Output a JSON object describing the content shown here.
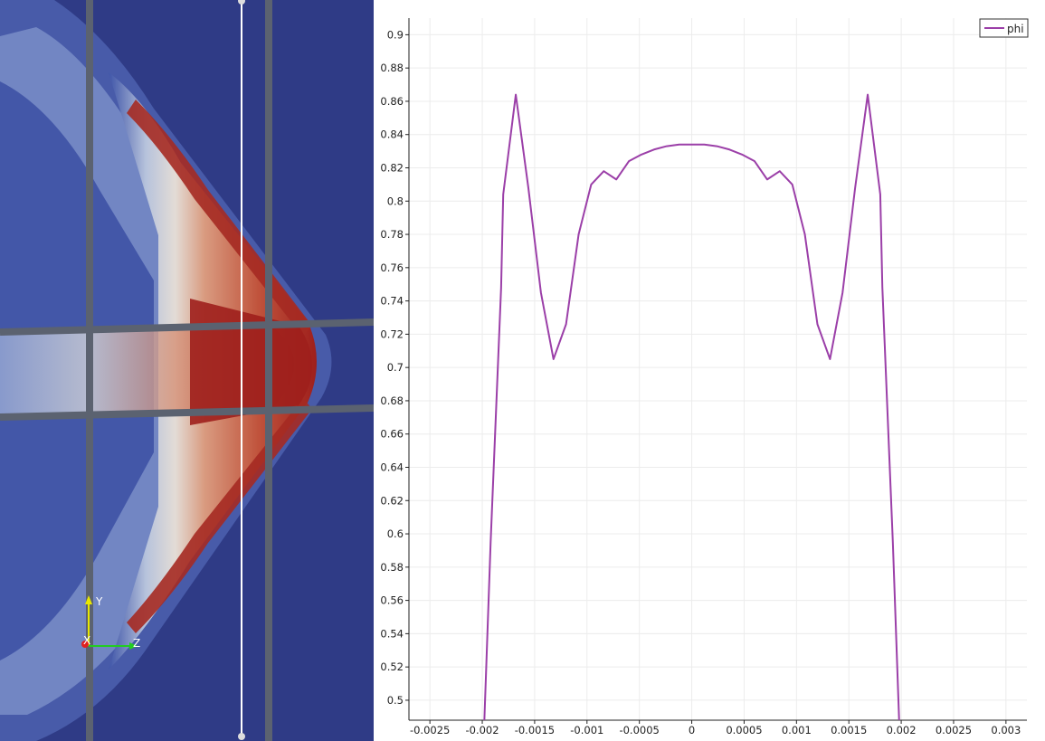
{
  "render_view": {
    "orientation_axes": {
      "x_label": "X",
      "y_label": "Y",
      "z_label": "Z"
    },
    "colors": {
      "background": "#2f3b86",
      "high": "#9e1f1c",
      "mid": "#dcdcdc",
      "grid_lines": "#5b6270",
      "probe_line": "#ffffff"
    }
  },
  "chart_data": {
    "type": "line",
    "title": "",
    "xlabel": "",
    "ylabel": "",
    "xlim": [
      -0.0027,
      0.0032
    ],
    "ylim": [
      0.488,
      0.91
    ],
    "x_ticks": [
      -0.0025,
      -0.002,
      -0.0015,
      -0.001,
      -0.0005,
      0,
      0.0005,
      0.001,
      0.0015,
      0.002,
      0.0025,
      0.003
    ],
    "x_tick_labels": [
      "-0.0025",
      "-0.002",
      "-0.0015",
      "-0.001",
      "-0.0005",
      "0",
      "0.0005",
      "0.001",
      "0.0015",
      "0.002",
      "0.0025",
      "0.003"
    ],
    "y_ticks": [
      0.5,
      0.52,
      0.54,
      0.56,
      0.58,
      0.6,
      0.62,
      0.64,
      0.66,
      0.68,
      0.7,
      0.72,
      0.74,
      0.76,
      0.78,
      0.8,
      0.82,
      0.84,
      0.86,
      0.88,
      0.9
    ],
    "y_tick_labels": [
      "0.5",
      "0.52",
      "0.54",
      "0.56",
      "0.58",
      "0.6",
      "0.62",
      "0.64",
      "0.66",
      "0.68",
      "0.7",
      "0.72",
      "0.74",
      "0.76",
      "0.78",
      "0.8",
      "0.82",
      "0.84",
      "0.86",
      "0.88",
      "0.9"
    ],
    "grid": true,
    "legend_position": "top-right",
    "series": [
      {
        "name": "phi",
        "color": "#9b3fa8",
        "x": [
          -0.00198,
          -0.00192,
          -0.00182,
          -0.0018,
          -0.00168,
          -0.00156,
          -0.00144,
          -0.00132,
          -0.0012,
          -0.00108,
          -0.00096,
          -0.00084,
          -0.00072,
          -0.0006,
          -0.00048,
          -0.00036,
          -0.00024,
          -0.00012,
          0,
          0.00012,
          0.00024,
          0.00036,
          0.00048,
          0.0006,
          0.00072,
          0.00084,
          0.00096,
          0.00108,
          0.0012,
          0.00132,
          0.00144,
          0.00156,
          0.00168,
          0.0018,
          0.00182,
          0.00192,
          0.00198
        ],
        "y": [
          0.488,
          0.595,
          0.748,
          0.804,
          0.864,
          0.808,
          0.745,
          0.705,
          0.726,
          0.78,
          0.81,
          0.818,
          0.813,
          0.824,
          0.828,
          0.831,
          0.833,
          0.834,
          0.834,
          0.834,
          0.833,
          0.831,
          0.828,
          0.824,
          0.813,
          0.818,
          0.81,
          0.78,
          0.726,
          0.705,
          0.745,
          0.808,
          0.864,
          0.804,
          0.748,
          0.595,
          0.488
        ]
      }
    ]
  }
}
